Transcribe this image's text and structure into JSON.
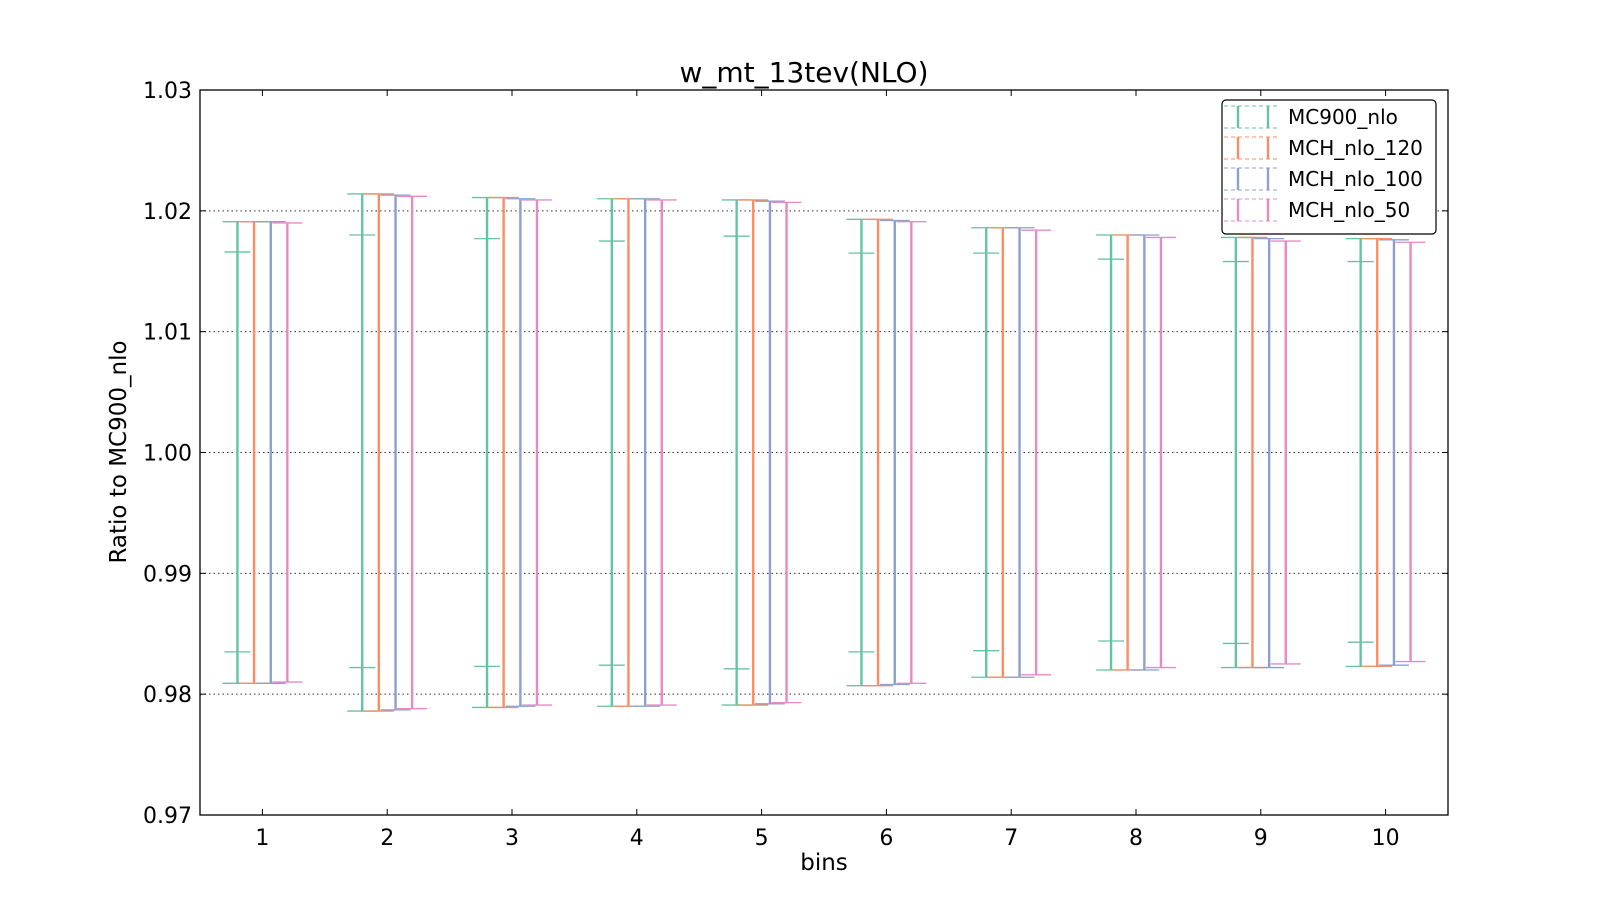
{
  "chart_data": {
    "type": "errorbar",
    "title": "w_mt_13tev(NLO)",
    "xlabel": "bins",
    "ylabel": "Ratio to MC900_nlo",
    "ylim": [
      0.97,
      1.03
    ],
    "yticks": [
      "0.97",
      "0.98",
      "0.99",
      "1.00",
      "1.01",
      "1.02",
      "1.03"
    ],
    "categories": [
      "1",
      "2",
      "3",
      "4",
      "5",
      "6",
      "7",
      "8",
      "9",
      "10"
    ],
    "grid": "horizontal dotted",
    "legend_position": "top-right",
    "series": [
      {
        "name": "MC900_nlo",
        "color": "#66c2a5",
        "upper": [
          1.0191,
          1.0214,
          1.0211,
          1.021,
          1.0209,
          1.0193,
          1.0186,
          1.018,
          1.0178,
          1.0177
        ],
        "lower": [
          0.9809,
          0.9786,
          0.9789,
          0.979,
          0.9791,
          0.9807,
          0.9814,
          0.982,
          0.9822,
          0.9823
        ],
        "inner_upper": [
          1.0166,
          1.018,
          1.0177,
          1.0175,
          1.0179,
          1.0165,
          1.0165,
          1.016,
          1.0158,
          1.0158
        ],
        "inner_lower": [
          0.9835,
          0.9822,
          0.9823,
          0.9824,
          0.9821,
          0.9835,
          0.9836,
          0.9844,
          0.9842,
          0.9843
        ]
      },
      {
        "name": "MCH_nlo_120",
        "color": "#fc8d62",
        "upper": [
          1.0191,
          1.0214,
          1.0211,
          1.021,
          1.0209,
          1.0193,
          1.0186,
          1.018,
          1.0178,
          1.0177
        ],
        "lower": [
          0.9809,
          0.9786,
          0.9789,
          0.979,
          0.9791,
          0.9807,
          0.9814,
          0.982,
          0.9822,
          0.9823
        ]
      },
      {
        "name": "MCH_nlo_100",
        "color": "#8da0cb",
        "upper": [
          1.0191,
          1.0213,
          1.021,
          1.021,
          1.0208,
          1.0192,
          1.0186,
          1.018,
          1.0177,
          1.0176
        ],
        "lower": [
          0.9809,
          0.9787,
          0.979,
          0.979,
          0.9792,
          0.9808,
          0.9814,
          0.982,
          0.9822,
          0.9824
        ]
      },
      {
        "name": "MCH_nlo_50",
        "color": "#e78ac3",
        "upper": [
          1.019,
          1.0212,
          1.0209,
          1.0209,
          1.0207,
          1.0191,
          1.0184,
          1.0178,
          1.0175,
          1.0174
        ],
        "lower": [
          0.981,
          0.9788,
          0.9791,
          0.9791,
          0.9793,
          0.9809,
          0.9816,
          0.9822,
          0.9825,
          0.9827
        ]
      }
    ]
  }
}
